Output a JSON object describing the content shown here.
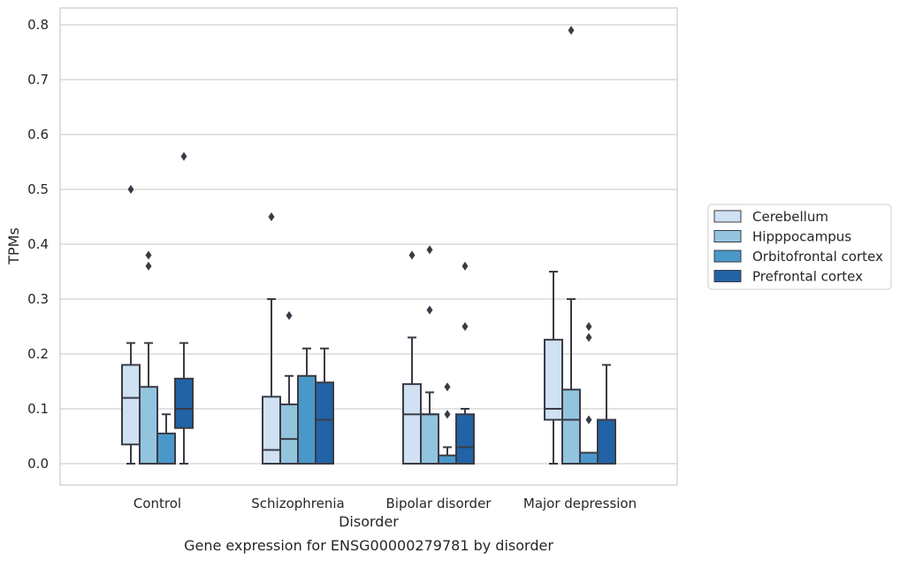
{
  "chart_data": {
    "type": "box",
    "categories": [
      "Control",
      "Schizophrenia",
      "Bipolar disorder",
      "Major depression"
    ],
    "xlabel": "Disorder",
    "ylabel": "TPMs",
    "caption": "Gene expression for ENSG00000279781 by disorder",
    "ylim": [
      -0.04,
      0.83
    ],
    "yticks": [
      "0.0",
      "0.1",
      "0.2",
      "0.3",
      "0.4",
      "0.5",
      "0.6",
      "0.7",
      "0.8"
    ],
    "grid": "horizontal",
    "legend_position": "right",
    "series": [
      {
        "name": "Cerebellum",
        "color": "#cfe1f2",
        "boxes": [
          {
            "whislo": 0.0,
            "q1": 0.035,
            "med": 0.12,
            "q3": 0.18,
            "whishi": 0.22,
            "fliers": [
              0.5
            ]
          },
          {
            "whislo": 0.0,
            "q1": 0.0,
            "med": 0.025,
            "q3": 0.122,
            "whishi": 0.3,
            "fliers": [
              0.45
            ]
          },
          {
            "whislo": 0.0,
            "q1": 0.0,
            "med": 0.09,
            "q3": 0.145,
            "whishi": 0.23,
            "fliers": [
              0.38
            ]
          },
          {
            "whislo": 0.0,
            "q1": 0.08,
            "med": 0.1,
            "q3": 0.226,
            "whishi": 0.35,
            "fliers": []
          }
        ]
      },
      {
        "name": "Hipppocampus",
        "color": "#93c4de",
        "boxes": [
          {
            "whislo": 0.0,
            "q1": 0.0,
            "med": 0.0,
            "q3": 0.14,
            "whishi": 0.22,
            "fliers": [
              0.38,
              0.36
            ]
          },
          {
            "whislo": 0.0,
            "q1": 0.0,
            "med": 0.045,
            "q3": 0.108,
            "whishi": 0.16,
            "fliers": [
              0.27
            ]
          },
          {
            "whislo": 0.0,
            "q1": 0.0,
            "med": 0.09,
            "q3": 0.09,
            "whishi": 0.13,
            "fliers": [
              0.39,
              0.28
            ]
          },
          {
            "whislo": 0.0,
            "q1": 0.0,
            "med": 0.08,
            "q3": 0.135,
            "whishi": 0.3,
            "fliers": [
              0.79
            ]
          }
        ]
      },
      {
        "name": "Orbitofrontal cortex",
        "color": "#4a98c9",
        "boxes": [
          {
            "whislo": 0.0,
            "q1": 0.0,
            "med": 0.0,
            "q3": 0.055,
            "whishi": 0.09,
            "fliers": []
          },
          {
            "whislo": 0.0,
            "q1": 0.0,
            "med": 0.0,
            "q3": 0.16,
            "whishi": 0.21,
            "fliers": []
          },
          {
            "whislo": 0.0,
            "q1": 0.0,
            "med": 0.0,
            "q3": 0.015,
            "whishi": 0.03,
            "fliers": [
              0.14,
              0.09
            ]
          },
          {
            "whislo": 0.0,
            "q1": 0.0,
            "med": 0.0,
            "q3": 0.02,
            "whishi": 0.02,
            "fliers": [
              0.25,
              0.23,
              0.08
            ]
          }
        ]
      },
      {
        "name": "Prefrontal cortex",
        "color": "#2163a6",
        "boxes": [
          {
            "whislo": 0.0,
            "q1": 0.065,
            "med": 0.1,
            "q3": 0.155,
            "whishi": 0.22,
            "fliers": [
              0.56
            ]
          },
          {
            "whislo": 0.0,
            "q1": 0.0,
            "med": 0.08,
            "q3": 0.148,
            "whishi": 0.21,
            "fliers": []
          },
          {
            "whislo": 0.0,
            "q1": 0.0,
            "med": 0.03,
            "q3": 0.09,
            "whishi": 0.1,
            "fliers": [
              0.36,
              0.25
            ]
          },
          {
            "whislo": 0.0,
            "q1": 0.0,
            "med": 0.0,
            "q3": 0.08,
            "whishi": 0.18,
            "fliers": []
          }
        ]
      }
    ]
  }
}
